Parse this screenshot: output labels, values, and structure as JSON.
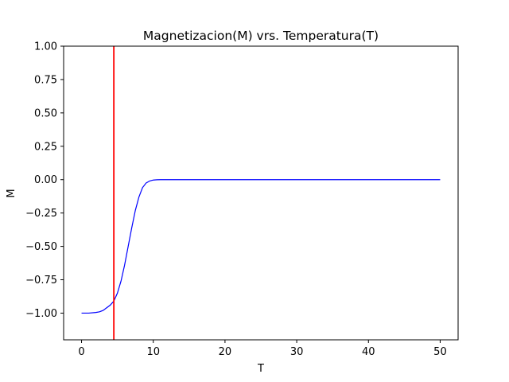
{
  "chart_data": {
    "type": "line",
    "title": "Magnetizacion(M) vrs. Temperatura(T)",
    "xlabel": "T",
    "ylabel": "M",
    "xlim": [
      -2.5,
      52.5
    ],
    "ylim": [
      -1.2,
      1.0
    ],
    "xticks": [
      0,
      10,
      20,
      30,
      40,
      50
    ],
    "yticks": [
      -1.0,
      -0.75,
      -0.5,
      -0.25,
      0.0,
      0.25,
      0.5,
      0.75,
      1.0
    ],
    "xtick_labels": [
      "0",
      "10",
      "20",
      "30",
      "40",
      "50"
    ],
    "ytick_labels": [
      "−1.00",
      "−0.75",
      "−0.50",
      "−0.25",
      "0.00",
      "0.25",
      "0.50",
      "0.75",
      "1.00"
    ],
    "grid": false,
    "series": [
      {
        "color": "#0000ff",
        "x": [
          0,
          1,
          2,
          2.5,
          3,
          3.5,
          4,
          4.5,
          5,
          5.5,
          6,
          6.5,
          7,
          7.5,
          8,
          8.5,
          9,
          9.5,
          10,
          10.5,
          11,
          12,
          14,
          16,
          20,
          25,
          30,
          35,
          40,
          45,
          50
        ],
        "y": [
          -1.0,
          -1.0,
          -0.995,
          -0.99,
          -0.98,
          -0.96,
          -0.94,
          -0.91,
          -0.85,
          -0.76,
          -0.64,
          -0.5,
          -0.36,
          -0.23,
          -0.13,
          -0.06,
          -0.025,
          -0.01,
          -0.003,
          -0.001,
          0.0,
          0.0,
          0.0,
          0.0,
          0.0,
          0.0,
          0.0,
          0.0,
          0.0,
          0.0,
          0.0
        ]
      }
    ],
    "vline": {
      "x": 4.5,
      "color": "#ff0000"
    }
  }
}
